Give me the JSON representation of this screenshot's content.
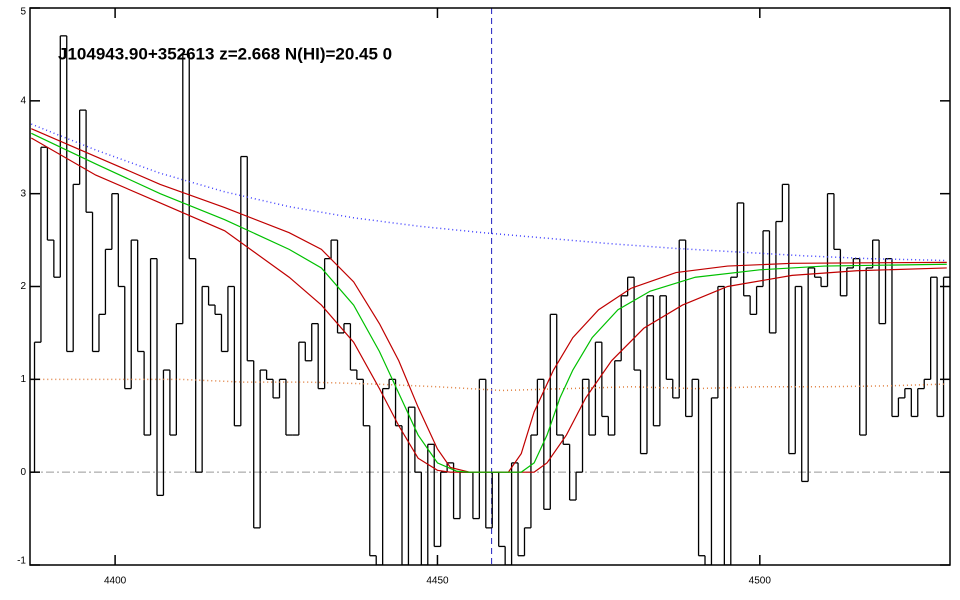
{
  "chart_data": {
    "type": "line",
    "title": "J104943.90+352613 z=2.668 N(HI)=20.45 0",
    "xlim": [
      4386.8,
      4529.5
    ],
    "ylim": [
      -1,
      5
    ],
    "xticks": [
      4400,
      4450,
      4500
    ],
    "yticks": [
      -1,
      0,
      1,
      2,
      3,
      4,
      5
    ],
    "vline": 4458.4,
    "hline": 0,
    "series": [
      {
        "style": "step",
        "color": "#000000",
        "x": [
          4387,
          4388,
          4389,
          4390,
          4391,
          4392,
          4393,
          4394,
          4395,
          4396,
          4397,
          4398,
          4399,
          4400,
          4401,
          4402,
          4403,
          4404,
          4405,
          4406,
          4407,
          4408,
          4409,
          4410,
          4411,
          4412,
          4413,
          4414,
          4415,
          4416,
          4417,
          4418,
          4419,
          4420,
          4421,
          4422,
          4423,
          4424,
          4425,
          4426,
          4427,
          4428,
          4429,
          4430,
          4431,
          4432,
          4433,
          4434,
          4435,
          4436,
          4437,
          4438,
          4439,
          4440,
          4441,
          4442,
          4443,
          4444,
          4445,
          4446,
          4447,
          4448,
          4449,
          4450,
          4451,
          4452,
          4453,
          4454,
          4455,
          4456,
          4457,
          4458,
          4459,
          4460,
          4461,
          4462,
          4463,
          4464,
          4465,
          4466,
          4467,
          4468,
          4469,
          4470,
          4471,
          4472,
          4473,
          4474,
          4475,
          4476,
          4477,
          4478,
          4479,
          4480,
          4481,
          4482,
          4483,
          4484,
          4485,
          4486,
          4487,
          4488,
          4489,
          4490,
          4491,
          4492,
          4493,
          4494,
          4495,
          4496,
          4497,
          4498,
          4499,
          4500,
          4501,
          4502,
          4503,
          4504,
          4505,
          4506,
          4507,
          4508,
          4509,
          4510,
          4511,
          4512,
          4513,
          4514,
          4515,
          4516,
          4517,
          4518,
          4519,
          4520,
          4521,
          4522,
          4523,
          4524,
          4525,
          4526,
          4527,
          4528,
          4529
        ],
        "values": [
          0.0,
          1.4,
          3.5,
          2.5,
          2.1,
          4.7,
          1.3,
          3.1,
          3.9,
          2.8,
          1.3,
          1.7,
          2.4,
          3.0,
          2.0,
          0.9,
          2.5,
          1.3,
          0.4,
          2.3,
          -0.25,
          1.1,
          0.4,
          1.6,
          4.5,
          2.3,
          0.0,
          2.0,
          1.8,
          1.7,
          1.3,
          2.0,
          0.5,
          3.4,
          1.2,
          -0.6,
          1.1,
          1.0,
          0.8,
          1.0,
          0.4,
          0.4,
          1.4,
          1.2,
          1.6,
          0.9,
          2.3,
          2.5,
          1.5,
          1.6,
          1.1,
          1.0,
          0.5,
          -0.9,
          -1.0,
          0.9,
          1.0,
          0.5,
          -1.0,
          0.7,
          0.0,
          -1.0,
          0.3,
          -0.8,
          0.0,
          0.1,
          -0.5,
          0.0,
          0.0,
          -0.5,
          1.0,
          -0.6,
          0.0,
          -0.8,
          -1.0,
          0.1,
          -0.9,
          -0.6,
          0.4,
          1.0,
          -0.4,
          1.7,
          0.4,
          0.3,
          -0.3,
          0.0,
          1.0,
          0.4,
          1.4,
          0.6,
          0.4,
          1.2,
          1.9,
          2.1,
          1.1,
          0.2,
          1.9,
          0.5,
          1.9,
          1.0,
          0.8,
          2.5,
          0.6,
          1.0,
          -0.9,
          -1.0,
          0.8,
          2.0,
          -1.0,
          2.1,
          2.9,
          1.9,
          1.7,
          2.0,
          2.6,
          1.5,
          2.7,
          3.1,
          0.2,
          2.0,
          -0.1,
          2.2,
          2.1,
          2.0,
          3.0,
          2.4,
          1.9,
          2.2,
          2.3,
          0.4,
          2.2,
          2.5,
          1.6,
          2.3,
          0.6,
          0.8,
          0.9,
          0.6,
          0.9,
          1.0,
          2.1,
          0.6,
          2.1
        ]
      },
      {
        "style": "dotted",
        "color": "#4040ff",
        "x": [
          4387,
          4397,
          4407,
          4417,
          4427,
          4437,
          4447,
          4457,
          4467,
          4477,
          4487,
          4497,
          4507,
          4517,
          4529
        ],
        "values": [
          3.75,
          3.47,
          3.22,
          3.02,
          2.86,
          2.74,
          2.65,
          2.58,
          2.52,
          2.46,
          2.41,
          2.37,
          2.33,
          2.3,
          2.28
        ]
      },
      {
        "style": "dotted",
        "color": "#e08040",
        "x": [
          4387,
          4400,
          4410,
          4420,
          4430,
          4440,
          4450,
          4460,
          4470,
          4480,
          4490,
          4500,
          4510,
          4520,
          4529
        ],
        "values": [
          1.0,
          1.0,
          1.0,
          0.97,
          0.97,
          0.95,
          0.92,
          0.88,
          0.9,
          0.92,
          0.9,
          0.92,
          0.92,
          0.93,
          0.95
        ]
      },
      {
        "style": "solid",
        "color": "#c00000",
        "x": [
          4387,
          4397,
          4407,
          4417,
          4427,
          4432,
          4437,
          4441,
          4444,
          4447,
          4450,
          4452,
          4455,
          4461,
          4463,
          4465,
          4468,
          4471,
          4475,
          4480,
          4487,
          4495,
          4505,
          4529
        ],
        "values": [
          3.7,
          3.4,
          3.1,
          2.85,
          2.58,
          2.4,
          2.05,
          1.6,
          1.2,
          0.7,
          0.25,
          0.05,
          0,
          0,
          0.2,
          0.65,
          1.1,
          1.45,
          1.75,
          1.98,
          2.15,
          2.22,
          2.25,
          2.26
        ]
      },
      {
        "style": "solid",
        "color": "#c00000",
        "x": [
          4387,
          4397,
          4407,
          4417,
          4427,
          4432,
          4437,
          4441,
          4444,
          4447,
          4450,
          4452,
          4465,
          4467,
          4470,
          4473,
          4477,
          4482,
          4488,
          4495,
          4505,
          4515,
          4529
        ],
        "values": [
          3.6,
          3.2,
          2.9,
          2.6,
          2.1,
          1.8,
          1.4,
          0.9,
          0.5,
          0.15,
          0.02,
          0,
          0,
          0.1,
          0.4,
          0.8,
          1.2,
          1.55,
          1.8,
          2.0,
          2.12,
          2.17,
          2.2
        ]
      },
      {
        "style": "solid",
        "color": "#00c000",
        "x": [
          4387,
          4397,
          4407,
          4417,
          4427,
          4432,
          4437,
          4441,
          4444,
          4447,
          4450,
          4453,
          4455,
          4463,
          4465,
          4467,
          4469,
          4471,
          4474,
          4478,
          4483,
          4490,
          4500,
          4510,
          4529
        ],
        "values": [
          3.65,
          3.32,
          3.0,
          2.72,
          2.4,
          2.2,
          1.8,
          1.3,
          0.85,
          0.4,
          0.1,
          0.01,
          0,
          0,
          0.1,
          0.4,
          0.8,
          1.1,
          1.45,
          1.75,
          1.95,
          2.1,
          2.18,
          2.22,
          2.24
        ]
      }
    ]
  }
}
